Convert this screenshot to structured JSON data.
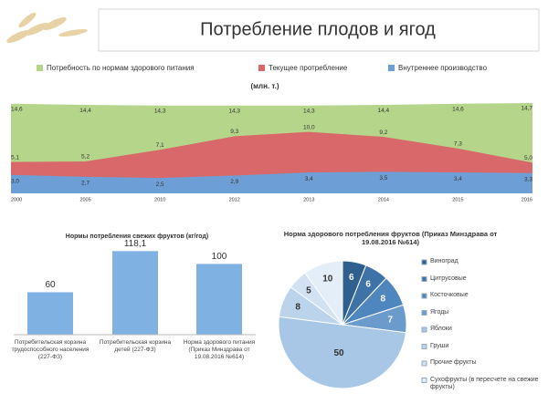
{
  "header": {
    "title": "Потребление плодов и ягод"
  },
  "chart_data": [
    {
      "type": "area",
      "subtitle": "(млн. т.)",
      "categories": [
        "2000",
        "2005",
        "2010",
        "2012",
        "2013",
        "2014",
        "2015",
        "2016"
      ],
      "ylim": [
        0,
        15
      ],
      "series": [
        {
          "name": "Потребность по нормам здорового питания",
          "color": "#b5d58a",
          "values": [
            14.6,
            14.4,
            14.3,
            14.3,
            14.3,
            14.4,
            14.6,
            14.7
          ],
          "value_labels": [
            "14,6",
            "14,4",
            "14,3",
            "14,3",
            "14,3",
            "14,4",
            "14,6",
            "14,7"
          ]
        },
        {
          "name": "Текущее протребление",
          "color": "#d9686a",
          "values": [
            5.1,
            5.2,
            7.1,
            9.3,
            10.0,
            9.2,
            7.3,
            5.0
          ],
          "value_labels": [
            "5,1",
            "5,2",
            "7,1",
            "9,3",
            "10,0",
            "9,2",
            "7,3",
            "5,0"
          ]
        },
        {
          "name": "Внутреннее производство",
          "color": "#6d9fd6",
          "values": [
            3.0,
            2.7,
            2.5,
            2.9,
            3.4,
            3.5,
            3.4,
            3.3
          ],
          "value_labels": [
            "3,0",
            "2,7",
            "2,5",
            "2,9",
            "3,4",
            "3,5",
            "3,4",
            "3,3"
          ]
        }
      ]
    },
    {
      "type": "bar",
      "title": "Нормы потребления свежих фруктов (кг/год)",
      "categories": [
        "Потребительская корзина трудоспособного населения (227-ФЗ)",
        "Потребительская корзина детей (227-ФЗ)",
        "Норма здорового питания (Приказ Минздрава от 19.08.2016 №614)"
      ],
      "values": [
        60,
        118.1,
        100
      ],
      "value_labels": [
        "60",
        "118,1",
        "100"
      ],
      "color": "#7fb2e3",
      "ylim": [
        0,
        125
      ]
    },
    {
      "type": "pie",
      "title": "Норма здорового потребления фруктов (Приказ Минздрава от 19.08.2016 №614)",
      "categories": [
        "Виноград",
        "Цитрусовые",
        "Косточковые",
        "Ягоды",
        "Яблоки",
        "Груши",
        "Прочие фрукты",
        "Сухофрукты (в пересчете на свежие фрукты)"
      ],
      "values": [
        6,
        6,
        8,
        7,
        50,
        8,
        5,
        10
      ],
      "colors": [
        "#2f5f8f",
        "#3f73a8",
        "#4f86bd",
        "#6a9bcc",
        "#a8c6e6",
        "#bcd3ec",
        "#d2e2f3",
        "#e4eef8"
      ]
    }
  ]
}
